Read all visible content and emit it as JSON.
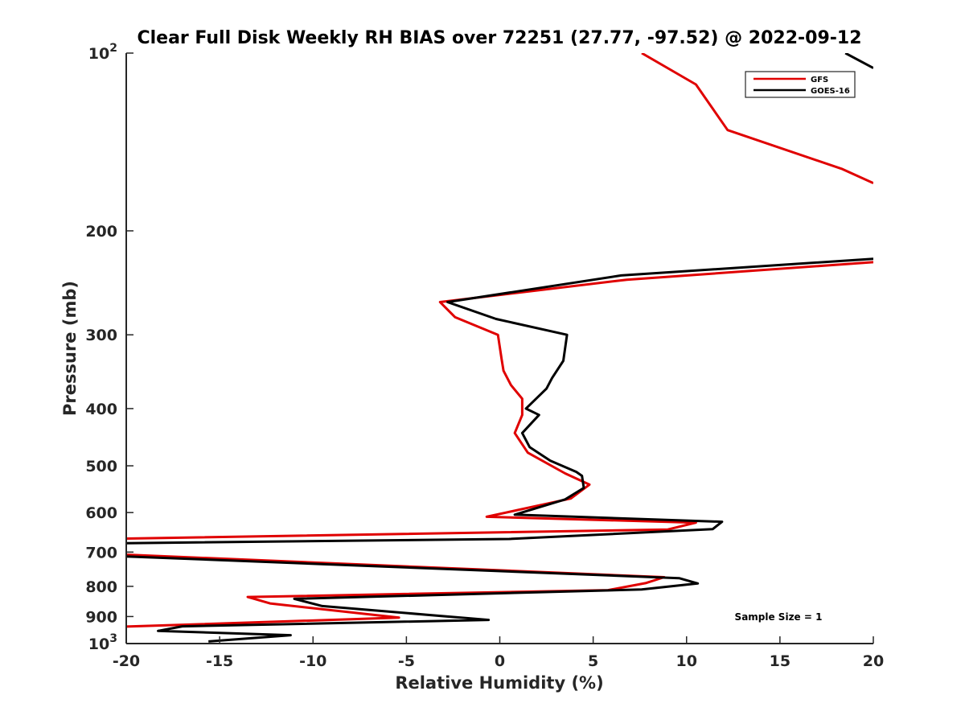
{
  "chart_data": {
    "type": "line",
    "title": "Clear Full Disk Weekly RH BIAS over 72251 (27.77, -97.52) @ 2022-09-12",
    "xlabel": "Relative Humidity (%)",
    "ylabel": "Pressure (mb)",
    "xlim": [
      -20,
      20
    ],
    "ylim": [
      100,
      1000
    ],
    "y_scale": "log",
    "y_reversed": true,
    "grid": false,
    "legend_position": "top-right",
    "x_ticks": [
      "-20",
      "-15",
      "-10",
      "-5",
      "0",
      "5",
      "10",
      "15",
      "20"
    ],
    "y_ticks": [
      {
        "value": 100,
        "base": "10",
        "exp": "2"
      },
      {
        "value": 200,
        "label": "200"
      },
      {
        "value": 300,
        "label": "300"
      },
      {
        "value": 400,
        "label": "400"
      },
      {
        "value": 500,
        "label": "500"
      },
      {
        "value": 600,
        "label": "600"
      },
      {
        "value": 700,
        "label": "700"
      },
      {
        "value": 800,
        "label": "800"
      },
      {
        "value": 900,
        "label": "900"
      },
      {
        "value": 1000,
        "base": "10",
        "exp": "3"
      }
    ],
    "annotation": "Sample Size = 1",
    "series": [
      {
        "name": "GFS",
        "color": "#e00000",
        "points": [
          [
            7.6,
            100
          ],
          [
            10.5,
            113
          ],
          [
            12.2,
            135
          ],
          [
            18.3,
            157
          ],
          [
            20,
            166
          ],
          [
            null,
            null
          ],
          [
            20,
            226
          ],
          [
            6.8,
            242
          ],
          [
            -3.2,
            264
          ],
          [
            -2.4,
            280
          ],
          [
            -0.1,
            300
          ],
          [
            0.1,
            330
          ],
          [
            0.2,
            345
          ],
          [
            0.6,
            365
          ],
          [
            1.2,
            385
          ],
          [
            1.2,
            410
          ],
          [
            0.8,
            440
          ],
          [
            1.5,
            475
          ],
          [
            3.5,
            515
          ],
          [
            4.8,
            538
          ],
          [
            3.8,
            568
          ],
          [
            -0.7,
            610
          ],
          [
            10.5,
            624
          ],
          [
            9.0,
            641
          ],
          [
            -20,
            664
          ],
          [
            null,
            null
          ],
          [
            -20,
            707
          ],
          [
            8.8,
            772
          ],
          [
            7.8,
            790
          ],
          [
            5.8,
            812
          ],
          [
            -13.5,
            834
          ],
          [
            -12.3,
            855
          ],
          [
            -5.4,
            904
          ],
          [
            -20,
            936
          ]
        ]
      },
      {
        "name": "GOES-16",
        "color": "#000000",
        "points": [
          [
            18.5,
            100
          ],
          [
            20,
            106
          ],
          [
            null,
            null
          ],
          [
            20,
            223
          ],
          [
            6.5,
            238
          ],
          [
            -2.8,
            264
          ],
          [
            -0.2,
            282
          ],
          [
            3.6,
            300
          ],
          [
            3.4,
            332
          ],
          [
            2.8,
            355
          ],
          [
            2.5,
            370
          ],
          [
            1.4,
            400
          ],
          [
            2.1,
            410
          ],
          [
            1.2,
            440
          ],
          [
            1.6,
            465
          ],
          [
            2.7,
            490
          ],
          [
            4.1,
            512
          ],
          [
            4.4,
            520
          ],
          [
            4.5,
            545
          ],
          [
            3.5,
            570
          ],
          [
            0.8,
            605
          ],
          [
            11.9,
            622
          ],
          [
            11.4,
            640
          ],
          [
            0.5,
            665
          ],
          [
            -20,
            676
          ],
          [
            null,
            null
          ],
          [
            -20,
            712
          ],
          [
            9.6,
            775
          ],
          [
            10.6,
            791
          ],
          [
            7.6,
            810
          ],
          [
            -11.0,
            840
          ],
          [
            -9.5,
            864
          ],
          [
            -0.6,
            912
          ],
          [
            -17.0,
            935
          ],
          [
            -18.3,
            952
          ],
          [
            -11.2,
            968
          ],
          [
            -15.6,
            992
          ]
        ]
      }
    ]
  }
}
